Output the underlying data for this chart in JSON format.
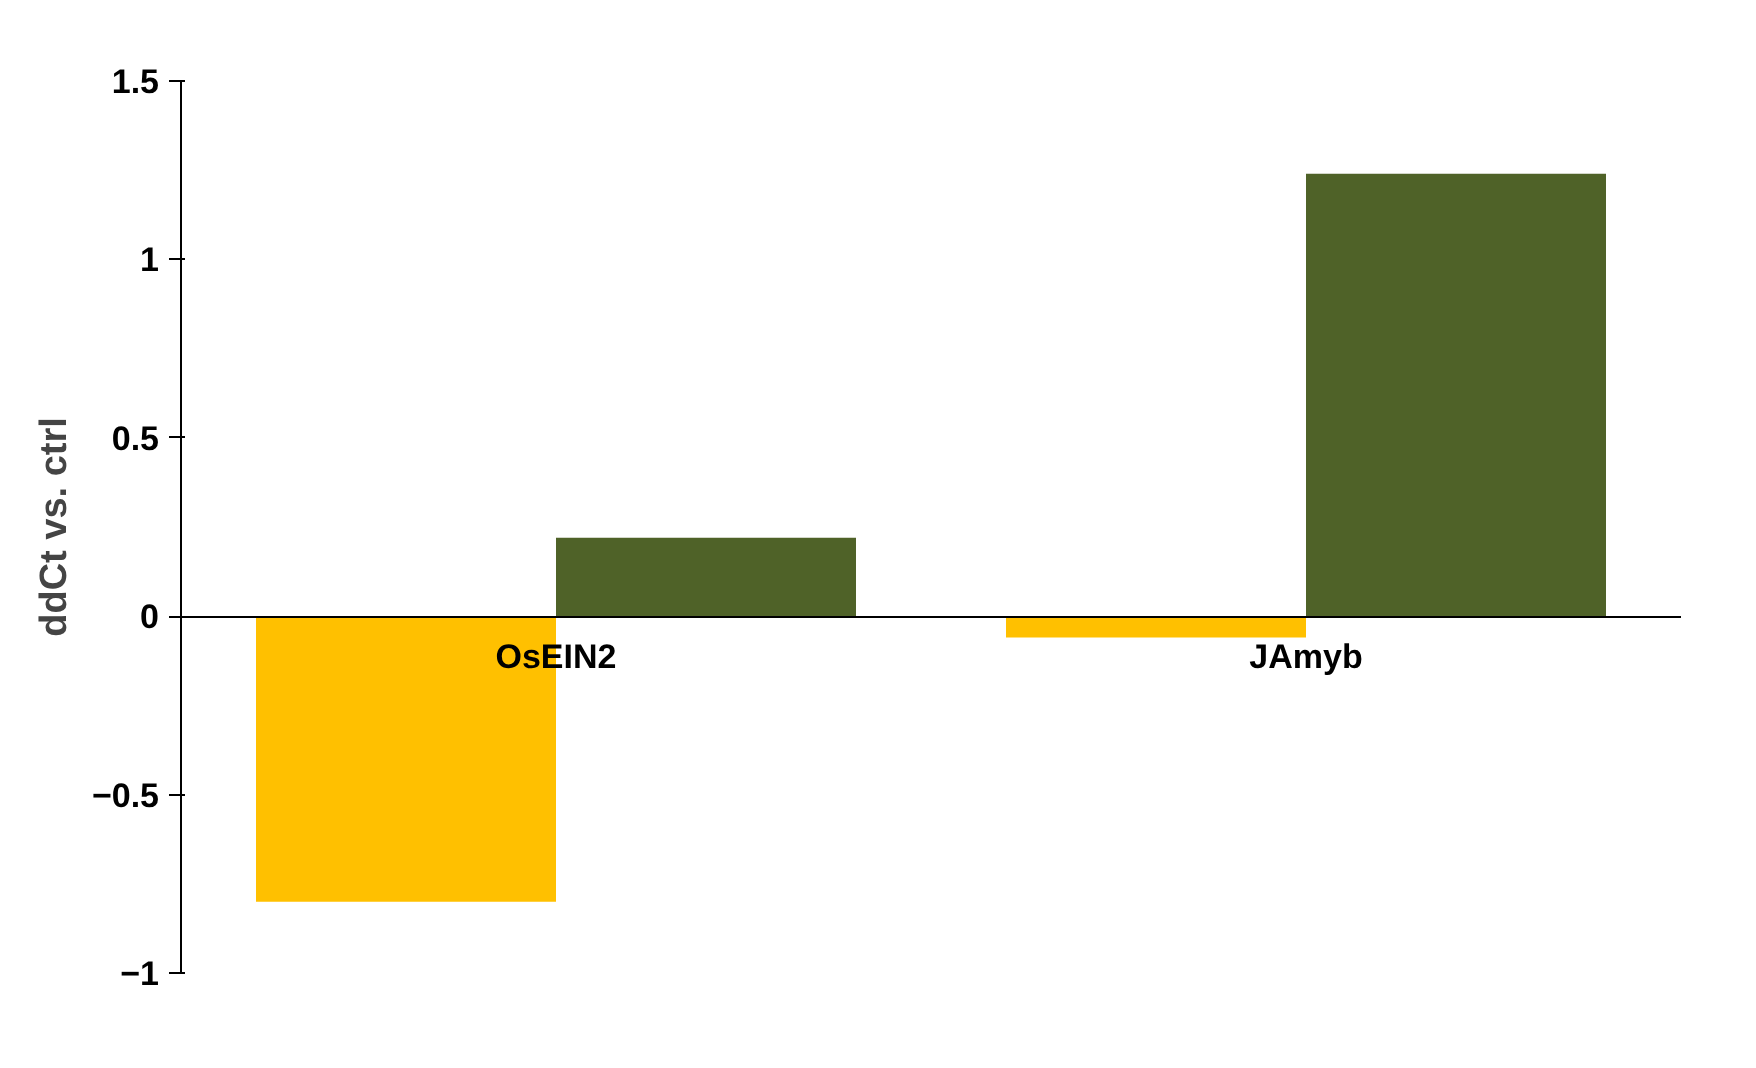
{
  "chart_data": {
    "type": "bar",
    "ylabel": "ddCt vs. ctrl",
    "categories": [
      "OsEIN2",
      "JAmyb"
    ],
    "series": [
      {
        "color": "#ffc000",
        "values": [
          -0.8,
          -0.06
        ]
      },
      {
        "color": "#4f6228",
        "values": [
          0.22,
          1.24
        ]
      }
    ],
    "ylim": [
      -1,
      1.5
    ],
    "yticks": [
      -1,
      -0.5,
      0,
      0.5,
      1,
      1.5
    ],
    "grid": false
  }
}
